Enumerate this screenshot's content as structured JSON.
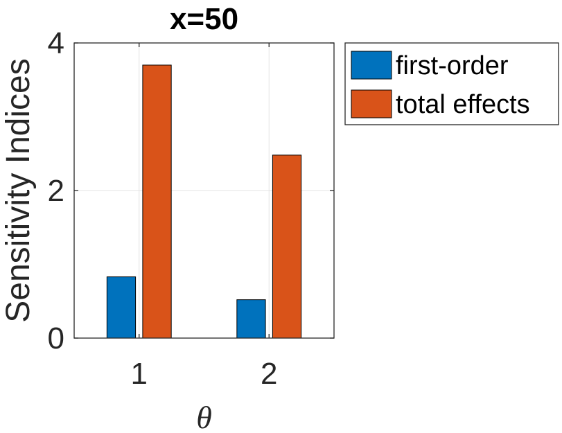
{
  "chart_data": {
    "type": "bar",
    "title": "x=50",
    "xlabel": "θ",
    "ylabel": "Sensitivity Indices",
    "categories": [
      "1",
      "2"
    ],
    "yticks": [
      "0",
      "2",
      "4"
    ],
    "ylim": [
      0,
      4
    ],
    "grid": true,
    "legend_position": "outside-top-right",
    "series": [
      {
        "name": "first-order",
        "values": [
          0.83,
          0.52
        ],
        "color": "#0072BD"
      },
      {
        "name": "total effects",
        "values": [
          3.7,
          2.48
        ],
        "color": "#D95319"
      }
    ]
  }
}
